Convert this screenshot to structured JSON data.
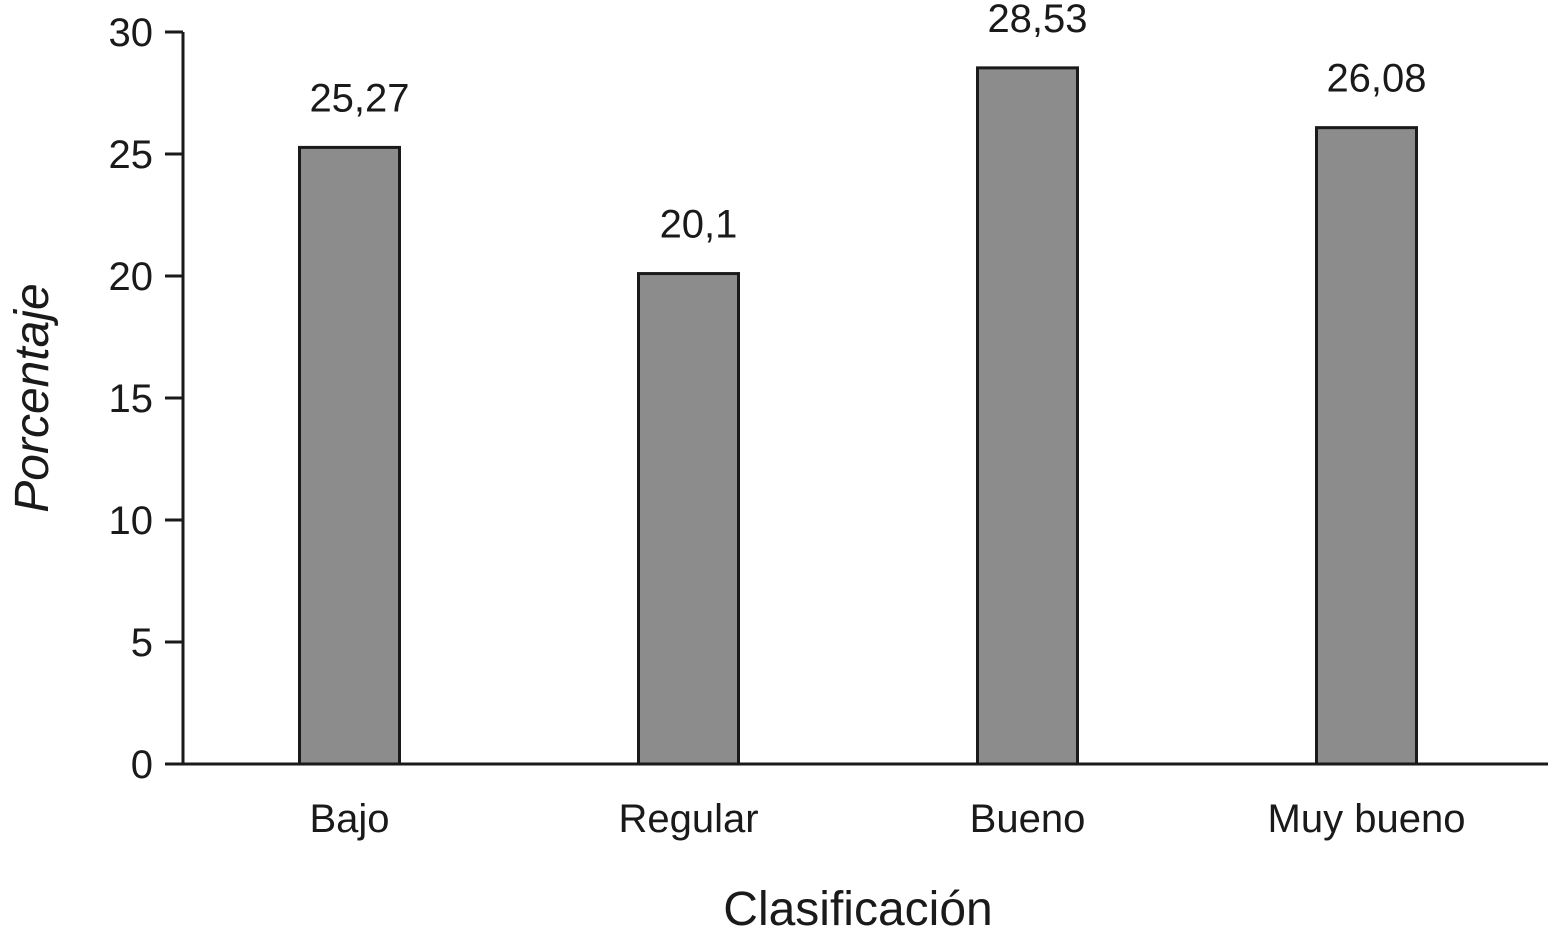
{
  "chart_data": {
    "type": "bar",
    "x_label": "Clasificación",
    "y_label": "Porcentaje",
    "categories": [
      "Bajo",
      "Regular",
      "Bueno",
      "Muy bueno"
    ],
    "values": [
      25.27,
      20.1,
      28.53,
      26.08
    ],
    "value_labels": [
      "25,27",
      "20,1",
      "28,53",
      "26,08"
    ],
    "color": "#8c8c8c",
    "ylim": [
      0,
      30
    ],
    "yticks": [
      0,
      5,
      10,
      15,
      20,
      25,
      30
    ],
    "grid": false
  }
}
